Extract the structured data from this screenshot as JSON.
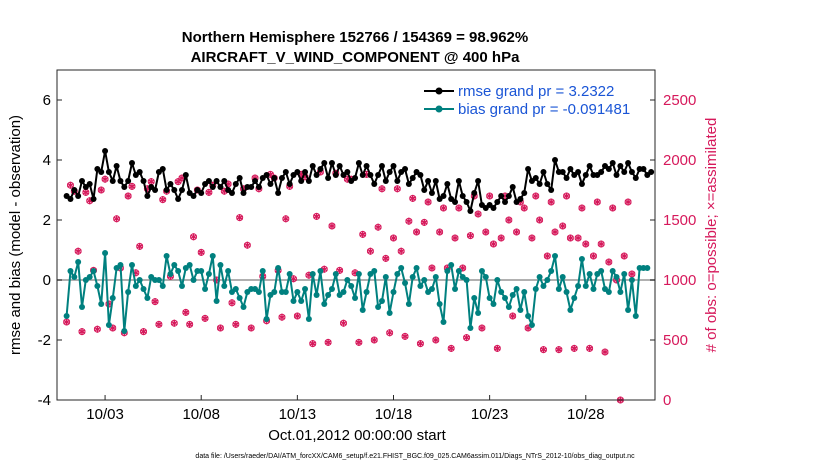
{
  "chart_data": {
    "type": "line",
    "title_line1": "Northern Hemisphere 152766 / 154369 = 98.962%",
    "title_line2": "AIRCRAFT_V_WIND_COMPONENT @ 400 hPa",
    "xlabel": "Oct.01,2012 00:00:00 start",
    "ylabel_left": "rmse and bias (model - observation)",
    "ylabel_right": "# of obs: o=possible; ×=assimilated",
    "footnote": "data file: /Users/raeder/DAI/ATM_forcXX/CAM6_setup/f.e21.FHIST_BGC.f09_025.CAM6assim.011/Diags_NTrS_2012-10/obs_diag_output.nc",
    "xlim": [
      0.5,
      31.6
    ],
    "ylim_left": [
      -4,
      7
    ],
    "ylim_right": [
      0,
      2750
    ],
    "yticks_left": [
      -4,
      -2,
      0,
      2,
      4,
      6
    ],
    "yticks_right": [
      0,
      500,
      1000,
      1500,
      2000,
      2500
    ],
    "xticks": [
      {
        "pos": 3,
        "label": "10/03"
      },
      {
        "pos": 8,
        "label": "10/08"
      },
      {
        "pos": 13,
        "label": "10/13"
      },
      {
        "pos": 18,
        "label": "10/18"
      },
      {
        "pos": 23,
        "label": "10/23"
      },
      {
        "pos": 28,
        "label": "10/28"
      }
    ],
    "legend": {
      "placement": "top-right",
      "rmse_label": "rmse grand pr = 3.2322",
      "bias_label": "bias grand pr = -0.091481"
    },
    "colors": {
      "rmse": "#000000",
      "bias": "#00807f",
      "obs": "#d6195b",
      "zero_line": "#b0b0b0",
      "legend_text": "#1a55d6"
    },
    "series": [
      {
        "name": "rmse",
        "values": [
          2.8,
          2.7,
          3.0,
          2.8,
          3.3,
          3.1,
          3.2,
          2.7,
          3.7,
          3.6,
          4.3,
          3.6,
          3.3,
          3.8,
          3.3,
          3.1,
          3.3,
          3.9,
          3.5,
          3.6,
          3.3,
          2.8,
          3.1,
          3.0,
          3.6,
          3.7,
          3.0,
          3.2,
          3.0,
          2.7,
          3.0,
          3.5,
          2.9,
          2.8,
          3.0,
          2.9,
          3.2,
          3.3,
          3.1,
          3.3,
          3.1,
          3.3,
          3.0,
          2.9,
          3.2,
          3.4,
          2.9,
          3.1,
          3.1,
          3.3,
          3.1,
          3.4,
          3.5,
          3.2,
          3.4,
          2.9,
          3.4,
          3.6,
          3.2,
          3.5,
          3.6,
          3.3,
          3.6,
          3.3,
          3.8,
          3.5,
          3.7,
          3.9,
          3.4,
          3.9,
          3.5,
          3.8,
          3.5,
          3.6,
          3.3,
          3.4,
          3.9,
          3.5,
          3.8,
          3.5,
          3.2,
          3.5,
          3.8,
          3.3,
          3.6,
          3.8,
          3.3,
          3.6,
          3.7,
          3.2,
          3.4,
          3.6,
          3.5,
          3.0,
          3.3,
          2.9,
          3.3,
          2.7,
          2.8,
          3.2,
          2.7,
          2.6,
          3.3,
          2.8,
          2.6,
          2.3,
          2.9,
          3.3,
          2.5,
          2.4,
          2.5,
          2.4,
          2.6,
          2.8,
          2.6,
          2.8,
          3.1,
          2.6,
          2.7,
          2.9,
          3.7,
          3.3,
          3.4,
          3.2,
          3.6,
          3.2,
          3.0,
          4.0,
          3.6,
          3.6,
          3.4,
          3.7,
          3.5,
          3.6,
          3.2,
          3.5,
          3.8,
          3.5,
          3.5,
          3.6,
          3.8,
          3.7,
          3.9,
          3.5,
          3.8,
          3.6,
          3.9,
          3.6,
          3.4,
          3.7,
          3.7,
          3.5,
          3.6
        ]
      },
      {
        "name": "bias",
        "values": [
          -1.2,
          0.3,
          0.1,
          0.6,
          -0.9,
          0.0,
          0.1,
          0.3,
          -0.2,
          -0.8,
          0.9,
          -1.5,
          -0.6,
          0.4,
          0.5,
          -1.7,
          -0.4,
          0.5,
          -0.2,
          0.0,
          -0.3,
          -0.6,
          0.1,
          0.0,
          0.0,
          -0.2,
          0.8,
          0.2,
          0.5,
          0.3,
          -0.2,
          0.4,
          0.5,
          0.0,
          0.3,
          0.3,
          -0.3,
          0.2,
          0.8,
          -0.7,
          0.5,
          -0.2,
          0.3,
          -0.4,
          -0.3,
          -0.6,
          -0.9,
          -0.4,
          -0.3,
          -0.3,
          -0.4,
          0.3,
          -1.3,
          -0.5,
          -0.4,
          0.4,
          -0.4,
          -0.4,
          0.2,
          -0.7,
          -0.4,
          -0.7,
          -0.3,
          -1.3,
          0.2,
          -0.5,
          0.3,
          -0.8,
          -0.5,
          -0.3,
          0.2,
          -0.5,
          -0.4,
          0.0,
          -0.2,
          -0.6,
          0.2,
          -1.0,
          -0.4,
          0.2,
          0.3,
          -0.9,
          -0.7,
          0.1,
          -1.1,
          -0.4,
          0.2,
          0.4,
          -0.1,
          -0.8,
          0.1,
          0.4,
          -0.2,
          0.0,
          -0.4,
          -0.3,
          0.1,
          -0.8,
          -1.4,
          0.3,
          0.5,
          -0.3,
          0.3,
          0.1,
          0.0,
          -1.6,
          -0.6,
          -1.1,
          0.3,
          0.1,
          -0.6,
          -0.8,
          0.0,
          -0.4,
          -0.6,
          -0.9,
          -0.5,
          -0.3,
          -1.0,
          -0.4,
          -1.2,
          -1.5,
          -0.3,
          0.1,
          -0.2,
          0.0,
          0.3,
          0.8,
          -0.3,
          0.1,
          -0.4,
          -1.0,
          -0.6,
          -0.2,
          0.7,
          -0.2,
          0.2,
          -0.3,
          0.2,
          0.3,
          -0.3,
          -0.4,
          0.3,
          0.1,
          -0.4,
          0.2,
          -1.0,
          0.0,
          -1.2,
          0.4,
          0.4,
          0.4
        ]
      },
      {
        "name": "obs",
        "values": [
          650,
          1790,
          1740,
          1240,
          570,
          1730,
          1660,
          1080,
          590,
          1750,
          1840,
          800,
          600,
          1510,
          1100,
          560,
          1700,
          1780,
          1060,
          1280,
          570,
          1760,
          1820,
          820,
          630,
          1670,
          1740,
          1030,
          640,
          1820,
          1850,
          730,
          630,
          1360,
          1750,
          1230,
          680,
          1730,
          1790,
          1000,
          600,
          1740,
          1800,
          810,
          630,
          1520,
          1760,
          1290,
          600,
          1850,
          1760,
          1030,
          660,
          1880,
          1850,
          1080,
          690,
          1510,
          1780,
          1010,
          700,
          1880,
          1860,
          1040,
          470,
          1530,
          1900,
          1090,
          480,
          1450,
          1890,
          1080,
          640,
          1840,
          1840,
          1060,
          480,
          1380,
          1880,
          1240,
          500,
          1440,
          1760,
          1180,
          560,
          1350,
          1760,
          1240,
          530,
          1490,
          1680,
          1400,
          470,
          1480,
          1650,
          1100,
          500,
          1400,
          1600,
          1100,
          430,
          1350,
          1600,
          1100,
          520,
          1370,
          1700,
          1550,
          600,
          1400,
          1700,
          1300,
          430,
          1350,
          1700,
          1500,
          700,
          1400,
          1650,
          1600,
          600,
          1350,
          1700,
          1500,
          420,
          1200,
          1650,
          1400,
          420,
          1450,
          1700,
          1350,
          430,
          1350,
          1600,
          1300,
          430,
          1200,
          1650,
          1300,
          400,
          1150,
          1600,
          1000,
          0,
          1200,
          1650,
          1050
        ]
      }
    ],
    "x_start": 1.0,
    "x_step": 0.2
  }
}
